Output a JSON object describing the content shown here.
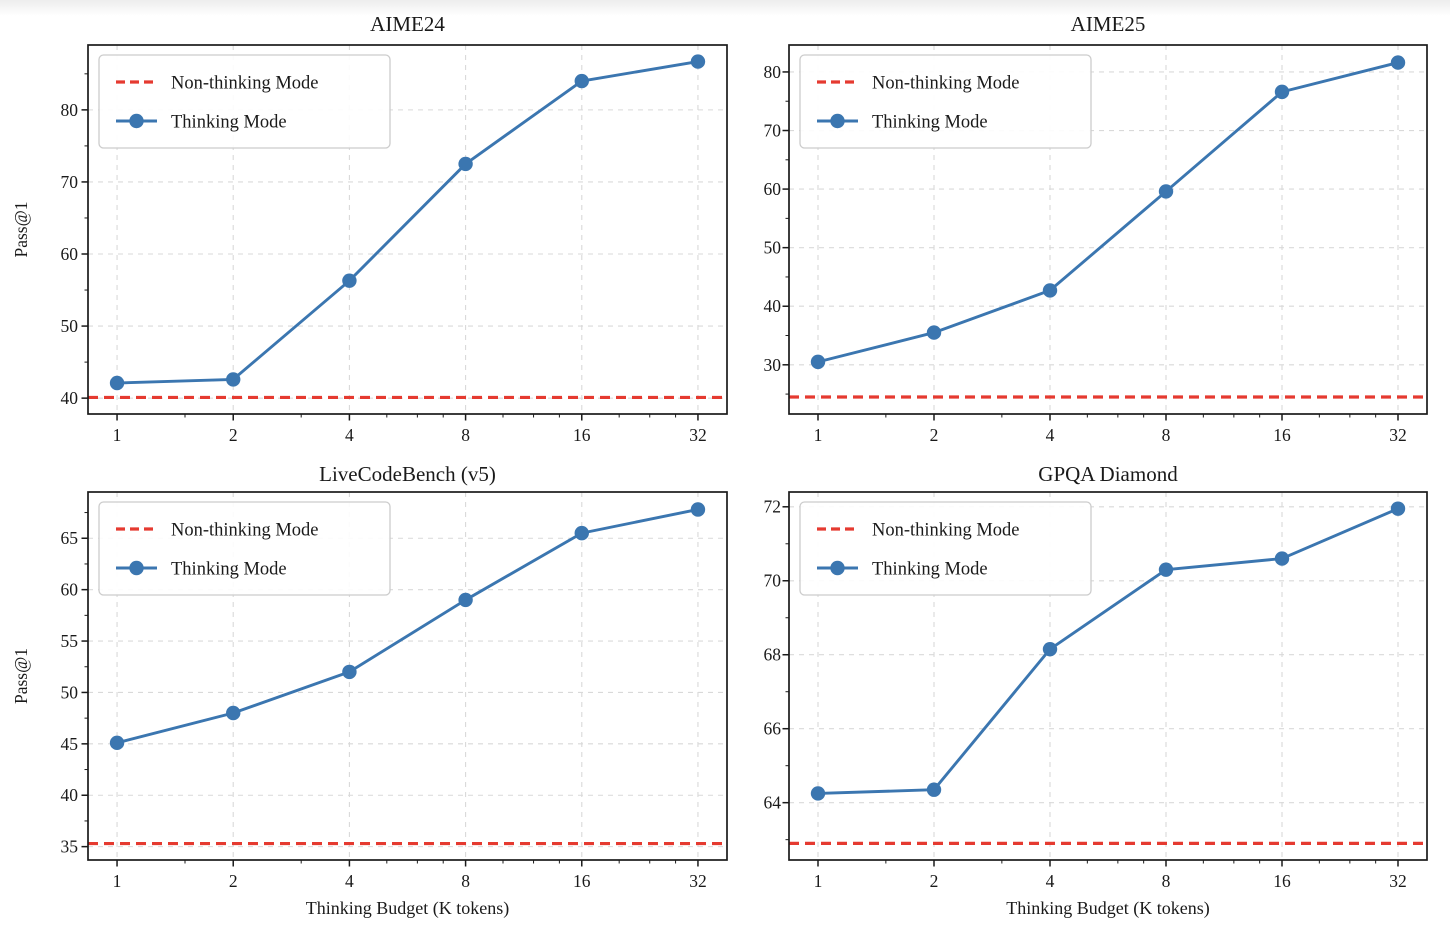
{
  "figure": {
    "background": "#ffffff",
    "colors": {
      "thinking_line": "#3b76b0",
      "non_thinking_line": "#e53a30",
      "grid": "#d9d9d9",
      "spine": "#1a1a1a",
      "text": "#1a1a1a",
      "legend_border": "#cccccc",
      "legend_bg": "#ffffff"
    },
    "shared": {
      "xlabel": "Thinking Budget (K tokens)",
      "ylabel": "Pass@1",
      "x_tick_labels": [
        "1",
        "2",
        "4",
        "8",
        "16",
        "32"
      ]
    }
  },
  "chart_data": [
    {
      "type": "line",
      "title": "AIME24",
      "xlabel": "",
      "ylabel": "Pass@1",
      "xscale": "log2",
      "x": [
        1,
        2,
        4,
        8,
        16,
        32
      ],
      "series": [
        {
          "name": "Non-thinking Mode",
          "style": "dashed-hline",
          "value": 40.1
        },
        {
          "name": "Thinking Mode",
          "style": "line-markers",
          "values": [
            42.1,
            42.6,
            56.3,
            72.5,
            84.0,
            86.7
          ]
        }
      ],
      "yticks": [
        40,
        50,
        60,
        70,
        80
      ],
      "ylim": [
        37.8,
        89.0
      ],
      "grid": true,
      "legend_position": "upper left"
    },
    {
      "type": "line",
      "title": "AIME25",
      "xlabel": "",
      "ylabel": "",
      "xscale": "log2",
      "x": [
        1,
        2,
        4,
        8,
        16,
        32
      ],
      "series": [
        {
          "name": "Non-thinking Mode",
          "style": "dashed-hline",
          "value": 24.5
        },
        {
          "name": "Thinking Mode",
          "style": "line-markers",
          "values": [
            30.5,
            35.5,
            42.7,
            59.6,
            76.6,
            81.6
          ]
        }
      ],
      "yticks": [
        30,
        40,
        50,
        60,
        70,
        80
      ],
      "ylim": [
        21.6,
        84.6
      ],
      "grid": true,
      "legend_position": "upper left"
    },
    {
      "type": "line",
      "title": "LiveCodeBench (v5)",
      "xlabel": "Thinking Budget (K tokens)",
      "ylabel": "Pass@1",
      "xscale": "log2",
      "x": [
        1,
        2,
        4,
        8,
        16,
        32
      ],
      "series": [
        {
          "name": "Non-thinking Mode",
          "style": "dashed-hline",
          "value": 35.3
        },
        {
          "name": "Thinking Mode",
          "style": "line-markers",
          "values": [
            45.1,
            48.0,
            52.0,
            59.0,
            65.5,
            67.8
          ]
        }
      ],
      "yticks": [
        35,
        40,
        45,
        50,
        55,
        60,
        65
      ],
      "ylim": [
        33.7,
        69.5
      ],
      "grid": true,
      "legend_position": "upper left"
    },
    {
      "type": "line",
      "title": "GPQA Diamond",
      "xlabel": "Thinking Budget (K tokens)",
      "ylabel": "",
      "xscale": "log2",
      "x": [
        1,
        2,
        4,
        8,
        16,
        32
      ],
      "series": [
        {
          "name": "Non-thinking Mode",
          "style": "dashed-hline",
          "value": 62.9
        },
        {
          "name": "Thinking Mode",
          "style": "line-markers",
          "values": [
            64.25,
            64.35,
            68.15,
            70.3,
            70.6,
            71.95
          ]
        }
      ],
      "yticks": [
        64,
        66,
        68,
        70,
        72
      ],
      "ylim": [
        62.45,
        72.4
      ],
      "grid": true,
      "legend_position": "upper left"
    }
  ]
}
